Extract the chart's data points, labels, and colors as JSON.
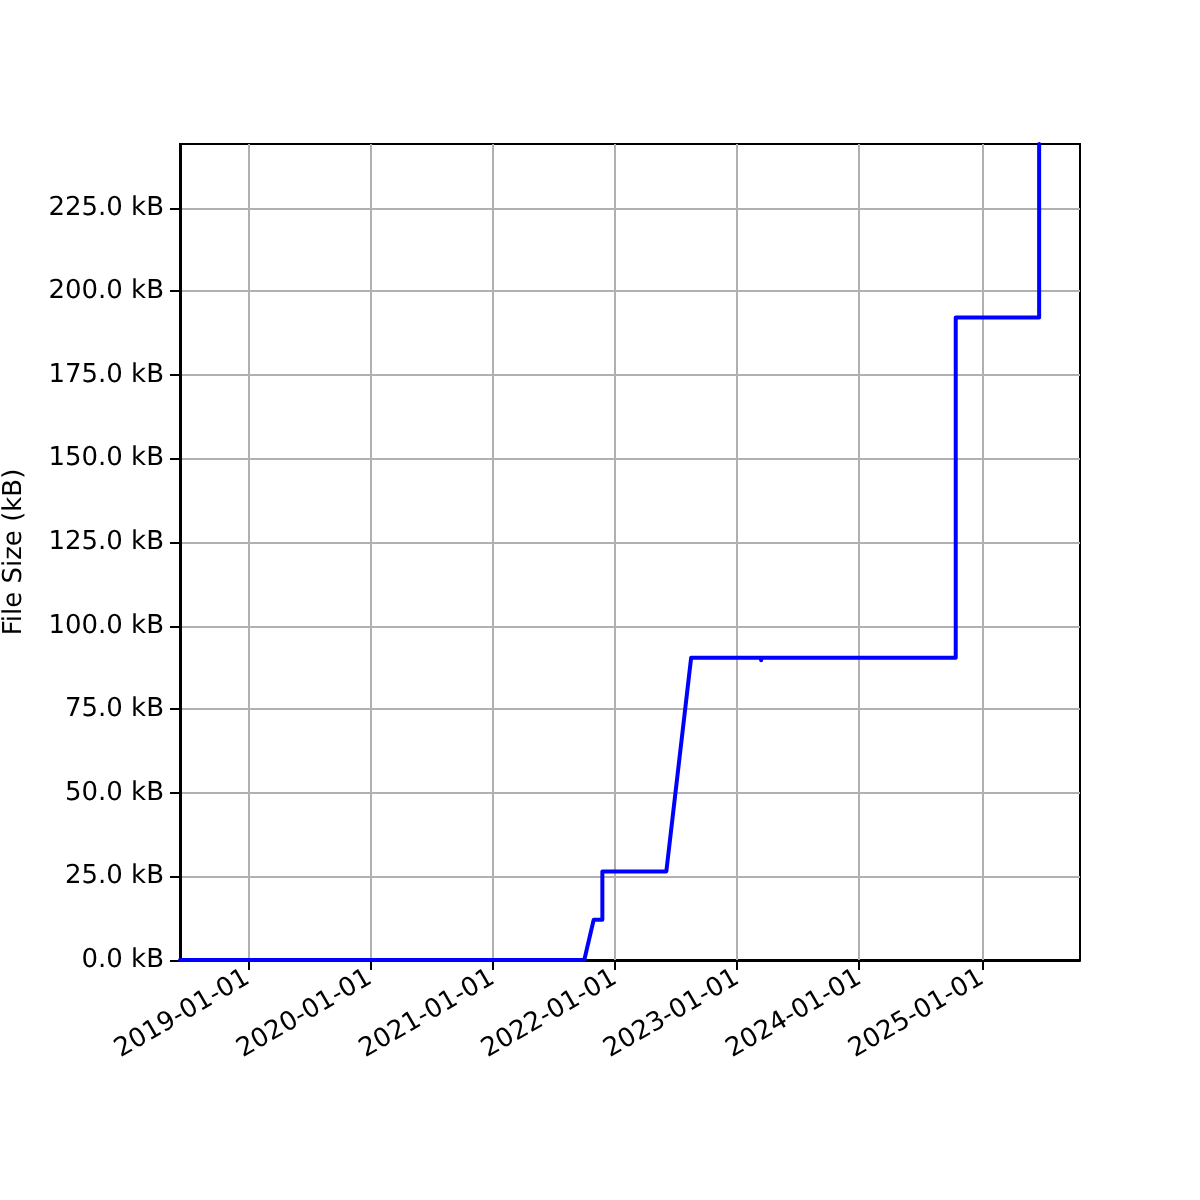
{
  "chart_data": {
    "type": "line",
    "ylabel": "File Size (kB)",
    "x": [
      "2018-06-13",
      "2021-10-02",
      "2021-10-30",
      "2021-11-25",
      "2021-11-25",
      "2022-06-04",
      "2022-08-17",
      "2023-03-13",
      "2023-03-14",
      "2023-03-15",
      "2024-10-15",
      "2024-10-15",
      "2025-06-21",
      "2025-06-21"
    ],
    "series": [
      {
        "color": "#0000ff",
        "values": [
          0,
          0,
          12,
          12,
          26.5,
          26.5,
          90.4,
          90.4,
          89.6,
          90.4,
          90.4,
          192.1,
          192.1,
          244
        ]
      }
    ],
    "xlim": [
      "2018-06-13",
      "2025-10-21"
    ],
    "xticks": [
      "2019-01-01",
      "2020-01-01",
      "2021-01-01",
      "2022-01-01",
      "2023-01-01",
      "2024-01-01",
      "2025-01-01"
    ],
    "ylim": [
      0,
      244
    ],
    "yticks": [
      {
        "value": 0,
        "label": "0.0 kB"
      },
      {
        "value": 25,
        "label": "25.0 kB"
      },
      {
        "value": 50,
        "label": "50.0 kB"
      },
      {
        "value": 75,
        "label": "75.0 kB"
      },
      {
        "value": 100,
        "label": "100.0 kB"
      },
      {
        "value": 125,
        "label": "125.0 kB"
      },
      {
        "value": 150,
        "label": "150.0 kB"
      },
      {
        "value": 175,
        "label": "175.0 kB"
      },
      {
        "value": 200,
        "label": "200.0 kB"
      },
      {
        "value": 225,
        "label": "225.0 kB"
      }
    ],
    "grid": true
  }
}
